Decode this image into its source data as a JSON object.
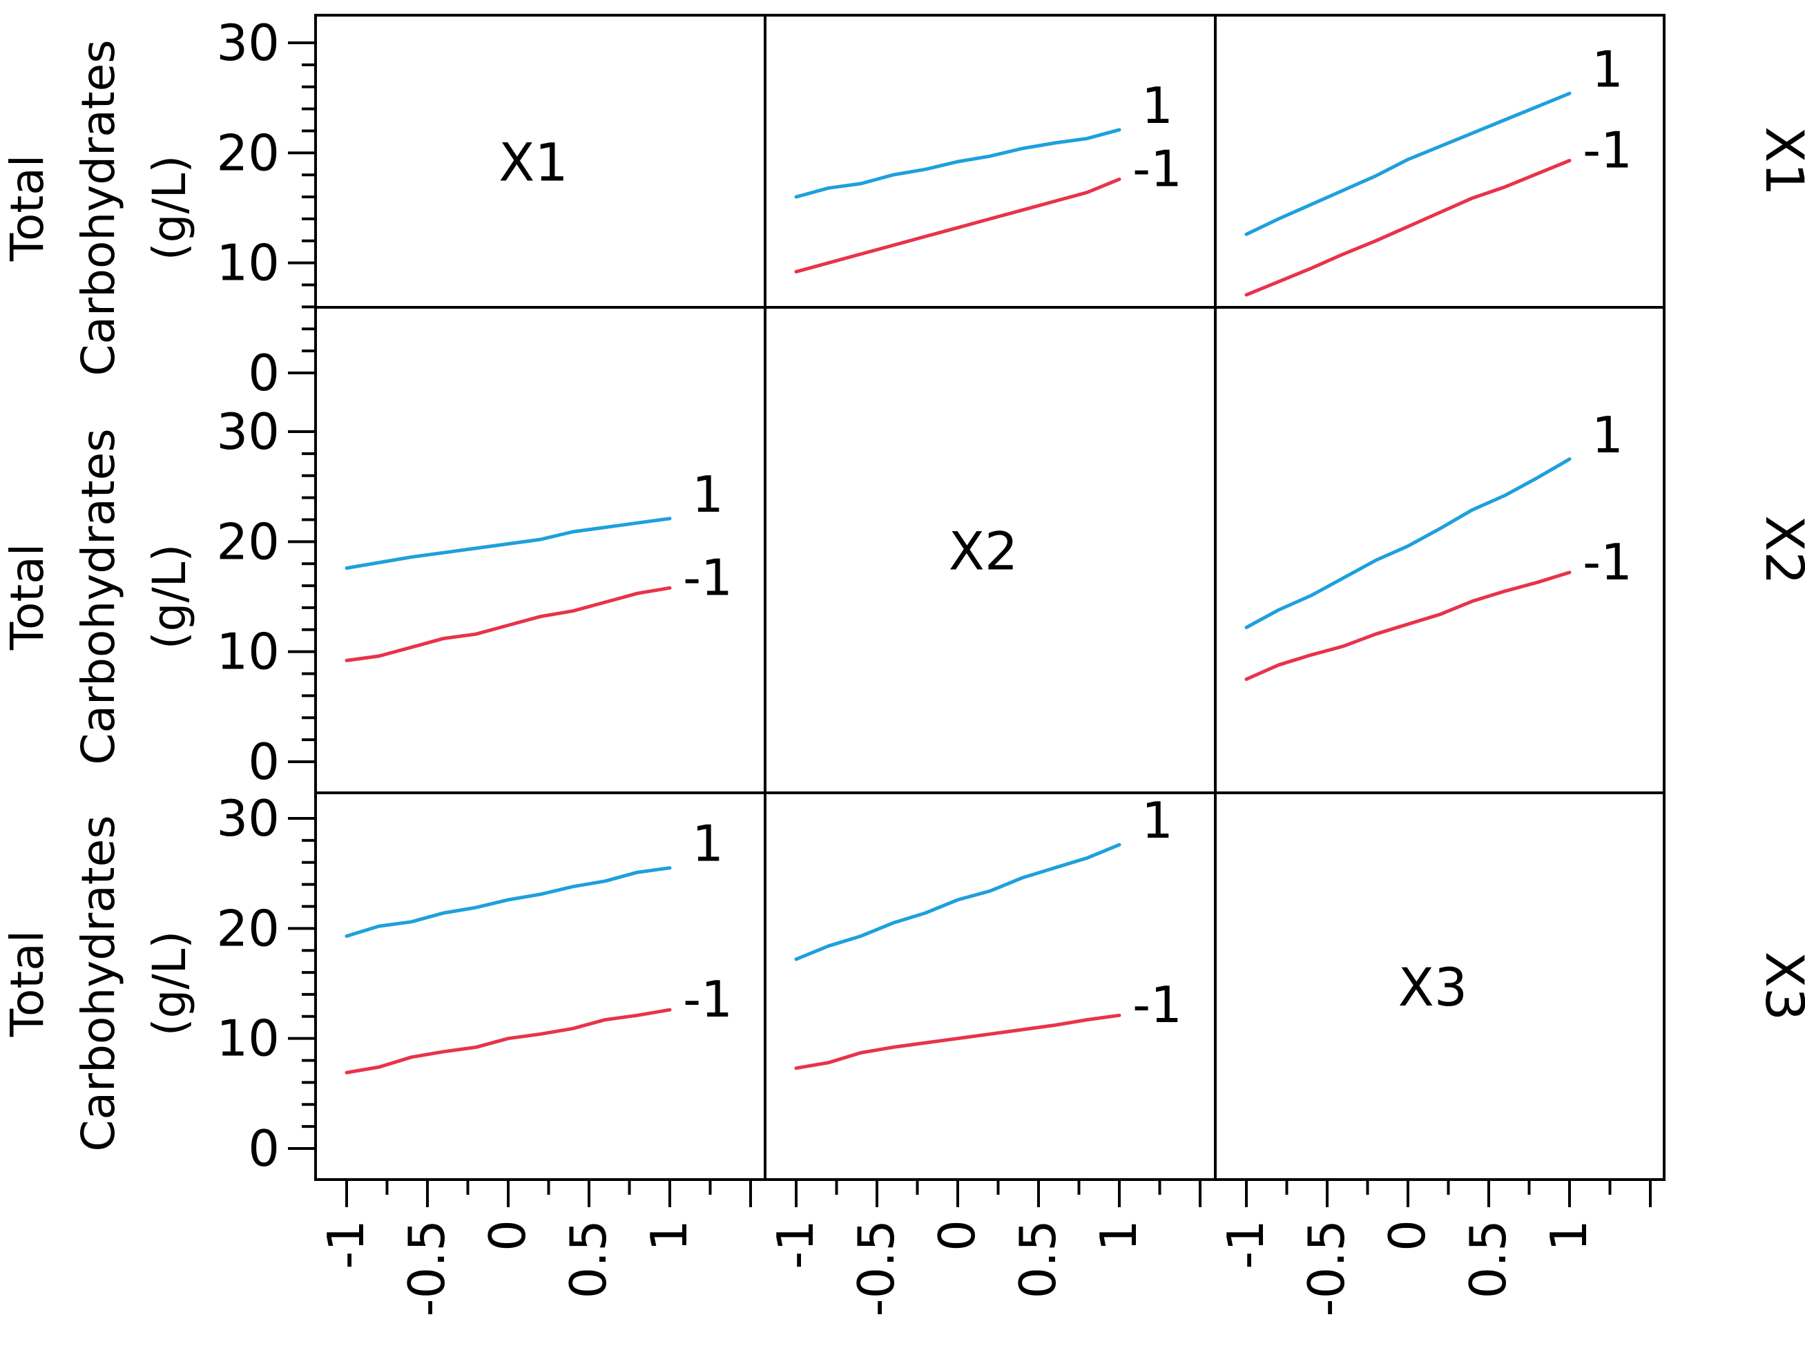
{
  "chart_data": {
    "type": "line",
    "title": "",
    "ylabel": "Total Carbohydrates (g/L)",
    "ylabel_lines": [
      "Total",
      "Carbohydrates",
      "(g/L)"
    ],
    "ylim": [
      0,
      30
    ],
    "yticks": [
      0,
      10,
      20,
      30
    ],
    "ytick_labels": [
      "0",
      "10",
      "20",
      "30"
    ],
    "xlim": [
      -1,
      1
    ],
    "xticks": [
      -1,
      -0.5,
      0,
      0.5,
      1
    ],
    "xtick_labels": [
      "-1",
      "-0.5",
      "0",
      "0.5",
      "1"
    ],
    "factors": [
      "X1",
      "X2",
      "X3"
    ],
    "row_labels": [
      "X1",
      "X2",
      "X3"
    ],
    "series_colors": {
      "high": "#1ea0dc",
      "low": "#e8334a"
    },
    "level_labels": {
      "high": "1",
      "low": "-1"
    },
    "x": [
      -1,
      -0.8,
      -0.6,
      -0.4,
      -0.2,
      0,
      0.2,
      0.4,
      0.6,
      0.8,
      1
    ],
    "panels": [
      {
        "row": 0,
        "col": 0,
        "diagonal": true,
        "label": "X1"
      },
      {
        "row": 0,
        "col": 1,
        "diagonal": false,
        "series": [
          {
            "level": "high",
            "values": [
              16.0,
              16.8,
              17.2,
              18.0,
              18.5,
              19.2,
              19.7,
              20.4,
              20.9,
              21.3,
              22.1
            ]
          },
          {
            "level": "low",
            "values": [
              9.2,
              10.0,
              10.8,
              11.6,
              12.4,
              13.2,
              14.0,
              14.8,
              15.6,
              16.4,
              17.6
            ]
          }
        ]
      },
      {
        "row": 0,
        "col": 2,
        "diagonal": false,
        "series": [
          {
            "level": "high",
            "values": [
              12.6,
              14.0,
              15.3,
              16.6,
              17.9,
              19.4,
              20.6,
              21.8,
              23.0,
              24.2,
              25.4
            ]
          },
          {
            "level": "low",
            "values": [
              7.1,
              8.3,
              9.5,
              10.8,
              12.0,
              13.3,
              14.6,
              15.9,
              16.9,
              18.1,
              19.3
            ]
          }
        ]
      },
      {
        "row": 1,
        "col": 0,
        "diagonal": false,
        "series": [
          {
            "level": "high",
            "values": [
              17.6,
              18.1,
              18.6,
              19.0,
              19.4,
              19.8,
              20.2,
              20.9,
              21.3,
              21.7,
              22.1
            ]
          },
          {
            "level": "low",
            "values": [
              9.2,
              9.6,
              10.4,
              11.2,
              11.6,
              12.4,
              13.2,
              13.7,
              14.5,
              15.3,
              15.8
            ]
          }
        ]
      },
      {
        "row": 1,
        "col": 1,
        "diagonal": true,
        "label": "X2"
      },
      {
        "row": 1,
        "col": 2,
        "diagonal": false,
        "series": [
          {
            "level": "high",
            "values": [
              12.2,
              13.8,
              15.1,
              16.7,
              18.3,
              19.6,
              21.2,
              22.9,
              24.2,
              25.8,
              27.5
            ]
          },
          {
            "level": "low",
            "values": [
              7.5,
              8.8,
              9.7,
              10.5,
              11.6,
              12.5,
              13.4,
              14.6,
              15.5,
              16.3,
              17.2
            ]
          }
        ]
      },
      {
        "row": 2,
        "col": 0,
        "diagonal": false,
        "series": [
          {
            "level": "high",
            "values": [
              19.3,
              20.2,
              20.6,
              21.4,
              21.9,
              22.6,
              23.1,
              23.8,
              24.3,
              25.1,
              25.5
            ]
          },
          {
            "level": "low",
            "values": [
              6.9,
              7.4,
              8.3,
              8.8,
              9.2,
              10.0,
              10.4,
              10.9,
              11.7,
              12.1,
              12.6
            ]
          }
        ]
      },
      {
        "row": 2,
        "col": 1,
        "diagonal": false,
        "series": [
          {
            "level": "high",
            "values": [
              17.2,
              18.4,
              19.3,
              20.5,
              21.4,
              22.6,
              23.4,
              24.6,
              25.5,
              26.4,
              27.6
            ]
          },
          {
            "level": "low",
            "values": [
              7.3,
              7.8,
              8.7,
              9.2,
              9.6,
              10.0,
              10.4,
              10.8,
              11.2,
              11.7,
              12.1
            ]
          }
        ]
      },
      {
        "row": 2,
        "col": 2,
        "diagonal": true,
        "label": "X3"
      }
    ]
  }
}
